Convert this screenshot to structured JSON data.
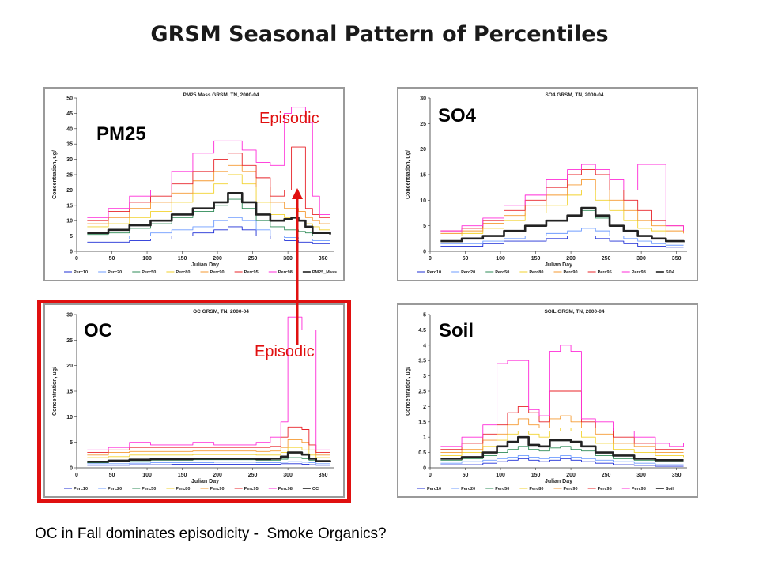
{
  "slide": {
    "title": "GRSM Seasonal Pattern of Percentiles",
    "caption": "OC in Fall dominates episodicity -  Smoke Organics?",
    "annotations": {
      "episodic_top": "Episodic",
      "episodic_bottom": "Episodic"
    },
    "colors": {
      "highlight": "#e01010",
      "arrow": "#e01010"
    }
  },
  "series_colors": {
    "Perc10": "#1f2fd6",
    "Perc20": "#6f9cff",
    "Perc50": "#2e8b57",
    "Perc80": "#f2d22e",
    "Perc90": "#f59a32",
    "Perc95": "#e8242a",
    "Perc98": "#ff2bd8",
    "Mean": "#222222"
  },
  "chart_data": [
    {
      "id": "pm25",
      "type": "line",
      "label": "PM25",
      "title": "PM25 Mass GRSM, TN, 2000-04",
      "xlabel": "Julian Day",
      "ylabel": "Concentration, ug/",
      "xlim": [
        0,
        365
      ],
      "ylim": [
        0,
        50
      ],
      "xticks": [
        0,
        50,
        100,
        150,
        200,
        250,
        300,
        350
      ],
      "yticks": [
        0,
        5,
        10,
        15,
        20,
        25,
        30,
        35,
        40,
        45,
        50
      ],
      "legend_position": "bottom",
      "x": [
        15,
        45,
        75,
        105,
        135,
        165,
        195,
        215,
        235,
        255,
        275,
        295,
        305,
        315,
        325,
        335,
        345,
        360
      ],
      "series": [
        {
          "name": "Perc10",
          "values": [
            3,
            3,
            3.5,
            4,
            5,
            6,
            7,
            8,
            7,
            5,
            4,
            3.5,
            3.5,
            3,
            3,
            2.5,
            2.5,
            2.5
          ]
        },
        {
          "name": "Perc20",
          "values": [
            4,
            4,
            5,
            6,
            7,
            8,
            10,
            11,
            10,
            7,
            5,
            4.5,
            4.5,
            4,
            4,
            3.5,
            3.5,
            3.5
          ]
        },
        {
          "name": "Perc50",
          "values": [
            5.5,
            6,
            7.5,
            9,
            11,
            13,
            15,
            17,
            14,
            10,
            8,
            7,
            7,
            6.5,
            6,
            5,
            5,
            4.5
          ]
        },
        {
          "name": "Perc80",
          "values": [
            8,
            9,
            11,
            13,
            16,
            19,
            22,
            25,
            22,
            16,
            12,
            11,
            11,
            10,
            9,
            8,
            7,
            7
          ]
        },
        {
          "name": "Perc90",
          "values": [
            9,
            11,
            14,
            16,
            19,
            23,
            26,
            28,
            26,
            21,
            16,
            14,
            14,
            13,
            11,
            10,
            9,
            9
          ]
        },
        {
          "name": "Perc95",
          "values": [
            10,
            13,
            16,
            18,
            22,
            26,
            30,
            32,
            28,
            24,
            18,
            20,
            34,
            34,
            14,
            12,
            11,
            10
          ]
        },
        {
          "name": "Perc98",
          "values": [
            11,
            14,
            18,
            20,
            26,
            32,
            36,
            36,
            33,
            29,
            28,
            45,
            47,
            47,
            42,
            18,
            12,
            11
          ]
        },
        {
          "name": "PM25_Mass",
          "values": [
            6,
            7,
            8.5,
            10,
            12,
            14,
            16,
            19,
            16,
            12,
            10,
            10.5,
            11,
            10,
            8,
            6,
            6,
            5.5
          ]
        }
      ]
    },
    {
      "id": "so4",
      "type": "line",
      "label": "SO4",
      "title": "SO4 GRSM, TN, 2000-04",
      "xlabel": "Julian Day",
      "ylabel": "Concentration, ug/",
      "xlim": [
        0,
        365
      ],
      "ylim": [
        0,
        30
      ],
      "xticks": [
        0,
        50,
        100,
        150,
        200,
        250,
        300,
        350
      ],
      "yticks": [
        0,
        5,
        10,
        15,
        20,
        25,
        30
      ],
      "legend_position": "bottom",
      "x": [
        15,
        45,
        75,
        105,
        135,
        165,
        195,
        215,
        235,
        255,
        275,
        295,
        315,
        335,
        360
      ],
      "series": [
        {
          "name": "Perc10",
          "values": [
            1,
            1,
            1.5,
            2,
            2,
            2.5,
            3,
            3,
            2.5,
            2,
            1.5,
            1,
            1,
            0.8,
            0.8
          ]
        },
        {
          "name": "Perc20",
          "values": [
            1.5,
            1.5,
            2,
            2.5,
            3,
            3.5,
            4,
            4.5,
            4,
            3,
            2.5,
            2,
            1.5,
            1.2,
            1.2
          ]
        },
        {
          "name": "Perc50",
          "values": [
            2,
            2.5,
            3,
            4,
            5,
            6,
            7,
            8,
            6.5,
            5,
            4,
            3,
            2.5,
            2,
            2
          ]
        },
        {
          "name": "Perc80",
          "values": [
            3,
            3.5,
            4.5,
            6,
            7.5,
            9,
            11,
            12,
            10,
            8,
            6,
            4.5,
            4,
            3,
            3
          ]
        },
        {
          "name": "Perc90",
          "values": [
            3.5,
            4,
            5.5,
            7,
            9,
            11,
            13,
            14,
            12,
            10,
            8,
            6,
            5,
            4,
            3.5
          ]
        },
        {
          "name": "Perc95",
          "values": [
            4,
            4.5,
            6,
            8,
            10,
            12.5,
            15,
            16,
            15,
            12,
            10,
            8,
            6,
            5,
            4
          ]
        },
        {
          "name": "Perc98",
          "values": [
            4,
            5,
            6.5,
            9,
            11,
            14,
            16,
            17,
            16,
            14,
            12,
            17,
            17,
            5,
            4
          ]
        },
        {
          "name": "SO4",
          "values": [
            2,
            2.5,
            3,
            4,
            5,
            6,
            7,
            8.5,
            7,
            5,
            4,
            3,
            2.5,
            2,
            1.8
          ]
        }
      ]
    },
    {
      "id": "oc",
      "type": "line",
      "label": "OC",
      "title": "OC GRSM, TN, 2000-04",
      "xlabel": "Julian Day",
      "ylabel": "Concentration, ug/",
      "xlim": [
        0,
        365
      ],
      "ylim": [
        0,
        30
      ],
      "xticks": [
        0,
        50,
        100,
        150,
        200,
        250,
        300,
        350
      ],
      "yticks": [
        0,
        5,
        10,
        15,
        20,
        25,
        30
      ],
      "legend_position": "bottom",
      "x": [
        15,
        45,
        75,
        105,
        135,
        165,
        195,
        225,
        255,
        275,
        290,
        300,
        310,
        320,
        330,
        340,
        360
      ],
      "series": [
        {
          "name": "Perc10",
          "values": [
            0.5,
            0.5,
            0.6,
            0.6,
            0.7,
            0.7,
            0.7,
            0.7,
            0.7,
            0.7,
            0.8,
            0.8,
            0.8,
            0.7,
            0.6,
            0.5,
            0.5
          ]
        },
        {
          "name": "Perc20",
          "values": [
            0.8,
            0.8,
            0.9,
            1,
            1,
            1,
            1.1,
            1.1,
            1,
            1,
            1.1,
            1.2,
            1.2,
            1.1,
            1,
            0.8,
            0.8
          ]
        },
        {
          "name": "Perc50",
          "values": [
            1,
            1.2,
            1.4,
            1.5,
            1.5,
            1.6,
            1.6,
            1.6,
            1.5,
            1.5,
            1.7,
            2,
            2,
            1.8,
            1.5,
            1.2,
            1
          ]
        },
        {
          "name": "Perc80",
          "values": [
            2,
            2.2,
            2.5,
            2.5,
            2.5,
            2.6,
            2.6,
            2.6,
            2.5,
            2.5,
            3,
            4,
            4,
            3.5,
            2.5,
            2,
            2
          ]
        },
        {
          "name": "Perc90",
          "values": [
            2.5,
            3,
            3.2,
            3.2,
            3.2,
            3.3,
            3.3,
            3.3,
            3.2,
            3.3,
            4,
            5.5,
            5.5,
            5,
            3.5,
            2.5,
            2.5
          ]
        },
        {
          "name": "Perc95",
          "values": [
            3,
            3.5,
            4,
            4,
            4,
            4,
            4,
            4,
            4,
            4.2,
            6,
            8,
            8,
            7.5,
            4.5,
            3,
            3
          ]
        },
        {
          "name": "Perc98",
          "values": [
            3.5,
            4,
            5,
            4.5,
            4.5,
            5,
            4.5,
            4.5,
            5,
            6,
            9,
            29.5,
            29.5,
            27,
            27,
            3.5,
            3.5
          ]
        },
        {
          "name": "OC",
          "values": [
            1.2,
            1.4,
            1.6,
            1.7,
            1.7,
            1.8,
            1.8,
            1.8,
            1.7,
            1.8,
            2.2,
            3,
            3,
            2.6,
            1.8,
            1.3,
            1.2
          ]
        }
      ]
    },
    {
      "id": "soil",
      "type": "line",
      "label": "Soil",
      "title": "SOIL GRSM, TN, 2000-04",
      "xlabel": "Julian Day",
      "ylabel": "Concentration, ug/",
      "xlim": [
        0,
        365
      ],
      "ylim": [
        0,
        5
      ],
      "xticks": [
        0,
        50,
        100,
        150,
        200,
        250,
        300,
        350
      ],
      "yticks": [
        0,
        0.5,
        1,
        1.5,
        2,
        2.5,
        3,
        3.5,
        4,
        4.5,
        5
      ],
      "legend_position": "bottom",
      "x": [
        15,
        45,
        75,
        95,
        110,
        125,
        140,
        155,
        170,
        185,
        200,
        215,
        235,
        260,
        290,
        320,
        340,
        360
      ],
      "series": [
        {
          "name": "Perc10",
          "values": [
            0.1,
            0.1,
            0.15,
            0.2,
            0.25,
            0.3,
            0.25,
            0.2,
            0.25,
            0.3,
            0.25,
            0.2,
            0.15,
            0.1,
            0.08,
            0.05,
            0.05,
            0.05
          ]
        },
        {
          "name": "Perc20",
          "values": [
            0.15,
            0.2,
            0.25,
            0.3,
            0.35,
            0.4,
            0.35,
            0.3,
            0.35,
            0.4,
            0.35,
            0.3,
            0.25,
            0.2,
            0.15,
            0.1,
            0.1,
            0.1
          ]
        },
        {
          "name": "Perc50",
          "values": [
            0.25,
            0.3,
            0.4,
            0.5,
            0.6,
            0.7,
            0.6,
            0.55,
            0.65,
            0.7,
            0.6,
            0.55,
            0.4,
            0.3,
            0.25,
            0.2,
            0.2,
            0.2
          ]
        },
        {
          "name": "Perc80",
          "values": [
            0.4,
            0.5,
            0.7,
            0.9,
            1.1,
            1.2,
            1.1,
            1.0,
            1.2,
            1.3,
            1.2,
            1.0,
            0.8,
            0.6,
            0.5,
            0.4,
            0.4,
            0.35
          ]
        },
        {
          "name": "Perc90",
          "values": [
            0.5,
            0.6,
            0.9,
            1.1,
            1.4,
            1.6,
            1.4,
            1.3,
            1.6,
            1.7,
            1.5,
            1.3,
            1.1,
            0.8,
            0.7,
            0.5,
            0.5,
            0.5
          ]
        },
        {
          "name": "Perc95",
          "values": [
            0.6,
            0.8,
            1.1,
            1.4,
            1.8,
            2.0,
            1.8,
            1.5,
            2.5,
            2.5,
            2.5,
            1.5,
            1.3,
            1.0,
            0.8,
            0.6,
            0.6,
            0.6
          ]
        },
        {
          "name": "Perc98",
          "values": [
            0.7,
            1.0,
            1.4,
            3.4,
            3.5,
            3.5,
            1.9,
            1.7,
            3.8,
            4.0,
            3.8,
            1.6,
            1.5,
            1.2,
            1.0,
            0.8,
            0.7,
            0.8
          ]
        },
        {
          "name": "Soil",
          "values": [
            0.3,
            0.35,
            0.5,
            0.7,
            0.85,
            1.0,
            0.75,
            0.7,
            0.9,
            0.9,
            0.85,
            0.7,
            0.5,
            0.4,
            0.3,
            0.25,
            0.25,
            0.25
          ]
        }
      ]
    }
  ]
}
